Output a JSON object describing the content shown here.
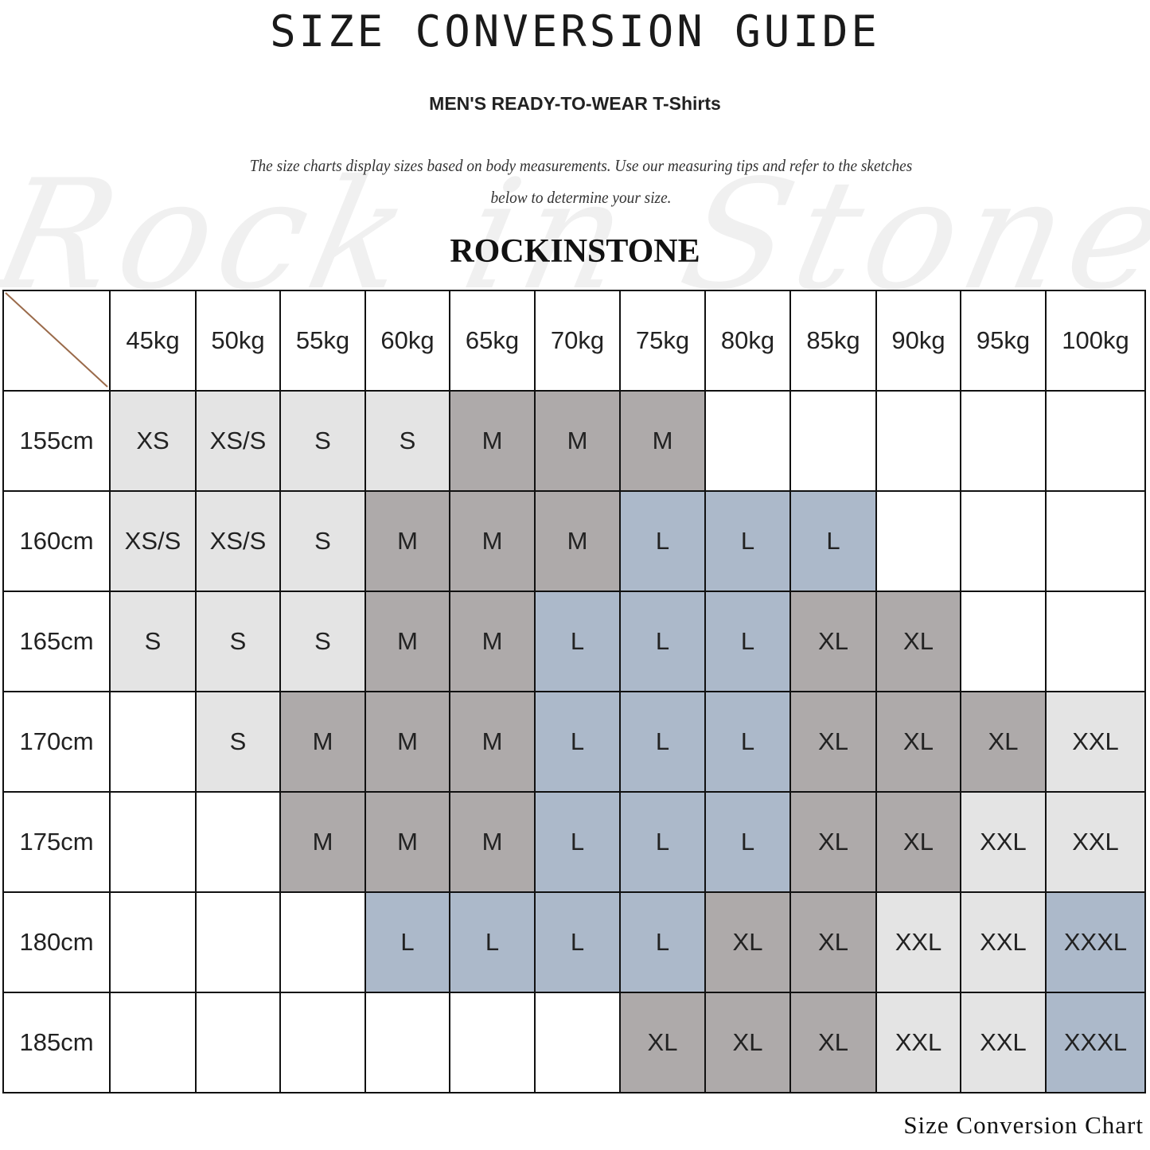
{
  "title": "SIZE CONVERSION GUIDE",
  "subtitle": "MEN'S READY-TO-WEAR T-Shirts",
  "description_line1": "The size charts display sizes based on body measurements. Use our measuring tips and refer to the sketches",
  "description_line2": "below to determine your size.",
  "brand": "ROCKINSTONE",
  "watermark": "Rock in Stone",
  "caption": "Size Conversion Chart",
  "colors": {
    "light": "#e4e4e4",
    "dark": "#aeaaaa",
    "blue": "#acb9ca",
    "empty": "#ffffff",
    "diagonal": "#9a6a4a"
  },
  "size_colors": {
    "XS": "light",
    "XS/S": "light",
    "S": "light",
    "XXL": "light",
    "M": "dark",
    "XL": "dark",
    "L": "blue",
    "XXXL": "blue"
  },
  "chart_data": {
    "type": "table",
    "columns": [
      "45kg",
      "50kg",
      "55kg",
      "60kg",
      "65kg",
      "70kg",
      "75kg",
      "80kg",
      "85kg",
      "90kg",
      "95kg",
      "100kg"
    ],
    "rows": [
      {
        "height": "155cm",
        "sizes": [
          "XS",
          "XS/S",
          "S",
          "S",
          "M",
          "M",
          "M",
          "",
          "",
          "",
          "",
          ""
        ]
      },
      {
        "height": "160cm",
        "sizes": [
          "XS/S",
          "XS/S",
          "S",
          "M",
          "M",
          "M",
          "L",
          "L",
          "L",
          "",
          "",
          ""
        ]
      },
      {
        "height": "165cm",
        "sizes": [
          "S",
          "S",
          "S",
          "M",
          "M",
          "L",
          "L",
          "L",
          "XL",
          "XL",
          "",
          ""
        ]
      },
      {
        "height": "170cm",
        "sizes": [
          "",
          "S",
          "M",
          "M",
          "M",
          "L",
          "L",
          "L",
          "XL",
          "XL",
          "XL",
          "XXL"
        ]
      },
      {
        "height": "175cm",
        "sizes": [
          "",
          "",
          "M",
          "M",
          "M",
          "L",
          "L",
          "L",
          "XL",
          "XL",
          "XXL",
          "XXL"
        ]
      },
      {
        "height": "180cm",
        "sizes": [
          "",
          "",
          "",
          "L",
          "L",
          "L",
          "L",
          "XL",
          "XL",
          "XXL",
          "XXL",
          "XXXL"
        ]
      },
      {
        "height": "185cm",
        "sizes": [
          "",
          "",
          "",
          "",
          "",
          "",
          "XL",
          "XL",
          "XL",
          "XXL",
          "XXL",
          "XXXL"
        ]
      }
    ]
  }
}
